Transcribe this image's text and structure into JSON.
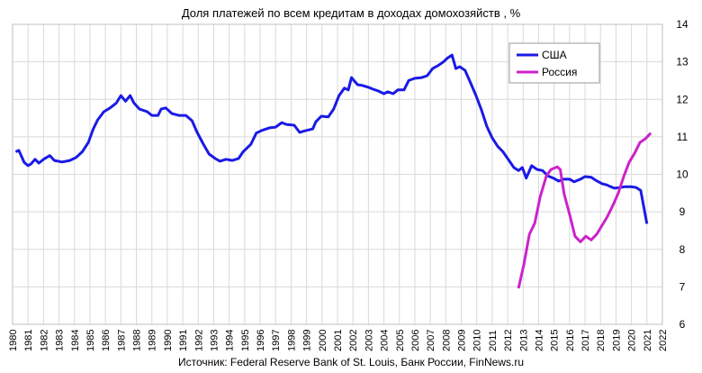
{
  "chart_data": {
    "type": "line",
    "title": "Доля платежей по всем кредитам в доходах домохозяйств , %",
    "source": "Источник: Federal Reserve Bank of St. Louis, Банк России, FinNews.ru",
    "xlim": [
      1980,
      2022
    ],
    "xticks": [
      1980,
      1981,
      1982,
      1983,
      1984,
      1985,
      1986,
      1987,
      1988,
      1989,
      1990,
      1991,
      1992,
      1993,
      1994,
      1995,
      1996,
      1997,
      1998,
      1999,
      2000,
      2001,
      2002,
      2003,
      2004,
      2005,
      2006,
      2007,
      2008,
      2009,
      2010,
      2011,
      2012,
      2013,
      2014,
      2015,
      2016,
      2017,
      2018,
      2019,
      2020,
      2021,
      2022
    ],
    "ylim": [
      6,
      14
    ],
    "yticks": [
      6,
      7,
      8,
      9,
      10,
      11,
      12,
      13,
      14
    ],
    "grid": true,
    "legend": "upper right",
    "series": [
      {
        "name": "США",
        "color": "#1a1ae6",
        "x": [
          1980.2,
          1980.4,
          1980.75,
          1981.0,
          1981.2,
          1981.45,
          1981.7,
          1982.0,
          1982.4,
          1982.7,
          1983.2,
          1983.7,
          1984.1,
          1984.5,
          1984.9,
          1985.2,
          1985.5,
          1985.9,
          1986.3,
          1986.7,
          1987.0,
          1987.3,
          1987.6,
          1987.85,
          1988.2,
          1988.7,
          1989.0,
          1989.4,
          1989.6,
          1989.9,
          1990.3,
          1990.75,
          1991.2,
          1991.6,
          1991.9,
          1992.3,
          1992.7,
          1993.1,
          1993.4,
          1993.8,
          1994.2,
          1994.6,
          1994.9,
          1995.4,
          1995.75,
          1996.1,
          1996.6,
          1997.0,
          1997.4,
          1997.7,
          1998.2,
          1998.55,
          1998.9,
          1999.4,
          1999.6,
          1999.95,
          2000.4,
          2000.75,
          2001.1,
          2001.45,
          2001.7,
          2001.9,
          2002.3,
          2002.6,
          2003.0,
          2003.3,
          2003.65,
          2004.0,
          2004.25,
          2004.6,
          2004.9,
          2005.3,
          2005.6,
          2006.0,
          2006.45,
          2006.8,
          2007.15,
          2007.5,
          2007.85,
          2008.1,
          2008.4,
          2008.65,
          2008.9,
          2009.25,
          2009.6,
          2009.95,
          2010.3,
          2010.65,
          2011.0,
          2011.35,
          2011.7,
          2012.0,
          2012.4,
          2012.7,
          2012.95,
          2013.2,
          2013.55,
          2013.9,
          2014.25,
          2014.6,
          2014.95,
          2015.3,
          2015.6,
          2016.0,
          2016.3,
          2016.7,
          2017.0,
          2017.4,
          2017.7,
          2018.1,
          2018.4,
          2018.65,
          2018.9,
          2019.25,
          2019.6,
          2019.95,
          2020.3,
          2020.6,
          2021.0
        ],
        "values": [
          10.6,
          10.64,
          10.32,
          10.23,
          10.28,
          10.4,
          10.3,
          10.4,
          10.5,
          10.37,
          10.33,
          10.37,
          10.45,
          10.6,
          10.85,
          11.2,
          11.45,
          11.67,
          11.77,
          11.9,
          12.1,
          11.95,
          12.1,
          11.9,
          11.74,
          11.67,
          11.57,
          11.57,
          11.74,
          11.77,
          11.62,
          11.57,
          11.57,
          11.43,
          11.14,
          10.83,
          10.54,
          10.42,
          10.35,
          10.4,
          10.37,
          10.42,
          10.6,
          10.8,
          11.1,
          11.17,
          11.24,
          11.26,
          11.38,
          11.33,
          11.31,
          11.12,
          11.16,
          11.21,
          11.4,
          11.55,
          11.53,
          11.74,
          12.1,
          12.3,
          12.25,
          12.58,
          12.39,
          12.37,
          12.32,
          12.27,
          12.22,
          12.15,
          12.2,
          12.15,
          12.25,
          12.25,
          12.5,
          12.56,
          12.58,
          12.63,
          12.82,
          12.9,
          13.0,
          13.1,
          13.18,
          12.82,
          12.87,
          12.77,
          12.44,
          12.1,
          11.72,
          11.28,
          10.97,
          10.75,
          10.6,
          10.42,
          10.18,
          10.1,
          10.18,
          9.9,
          10.23,
          10.13,
          10.1,
          9.96,
          9.9,
          9.82,
          9.87,
          9.87,
          9.8,
          9.87,
          9.94,
          9.92,
          9.84,
          9.75,
          9.72,
          9.67,
          9.63,
          9.65,
          9.67,
          9.67,
          9.65,
          9.57,
          8.68
        ]
      },
      {
        "name": "Россия",
        "color": "#cc22cc",
        "x": [
          2012.7,
          2013.05,
          2013.4,
          2013.75,
          2014.1,
          2014.5,
          2014.8,
          2015.2,
          2015.4,
          2015.65,
          2016.0,
          2016.35,
          2016.7,
          2017.05,
          2017.4,
          2017.75,
          2018.1,
          2018.45,
          2018.8,
          2019.15,
          2019.5,
          2019.85,
          2020.2,
          2020.55,
          2020.9,
          2021.25
        ],
        "values": [
          6.96,
          7.6,
          8.4,
          8.7,
          9.4,
          9.96,
          10.13,
          10.2,
          10.13,
          9.48,
          8.93,
          8.35,
          8.2,
          8.35,
          8.25,
          8.4,
          8.64,
          8.88,
          9.17,
          9.5,
          9.94,
          10.32,
          10.56,
          10.85,
          10.95,
          11.1
        ]
      }
    ]
  }
}
